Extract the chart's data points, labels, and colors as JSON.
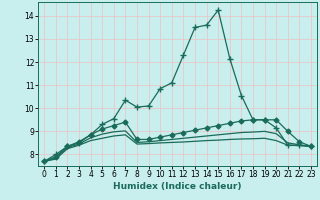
{
  "title": "",
  "xlabel": "Humidex (Indice chaleur)",
  "ylabel": "",
  "background_color": "#c8eeee",
  "grid_color": "#e8c8c8",
  "line_color": "#1a6b5a",
  "xlim": [
    -0.5,
    23.5
  ],
  "ylim": [
    7.5,
    14.6
  ],
  "xticks": [
    0,
    1,
    2,
    3,
    4,
    5,
    6,
    7,
    8,
    9,
    10,
    11,
    12,
    13,
    14,
    15,
    16,
    17,
    18,
    19,
    20,
    21,
    22,
    23
  ],
  "yticks": [
    8,
    9,
    10,
    11,
    12,
    13,
    14
  ],
  "series": [
    {
      "x": [
        0,
        1,
        2,
        3,
        4,
        5,
        6,
        7,
        8,
        9,
        10,
        11,
        12,
        13,
        14,
        15,
        16,
        17,
        18,
        19,
        20,
        21,
        22,
        23
      ],
      "y": [
        7.7,
        8.0,
        8.35,
        8.5,
        8.85,
        9.3,
        9.55,
        10.35,
        10.05,
        10.1,
        10.85,
        11.1,
        12.3,
        13.5,
        13.6,
        14.25,
        12.15,
        10.55,
        9.5,
        9.5,
        9.15,
        8.4,
        8.4,
        8.35
      ],
      "marker": "+",
      "linewidth": 0.9,
      "markersize": 4
    },
    {
      "x": [
        0,
        1,
        2,
        3,
        4,
        5,
        6,
        7,
        8,
        9,
        10,
        11,
        12,
        13,
        14,
        15,
        16,
        17,
        18,
        19,
        20,
        21,
        22,
        23
      ],
      "y": [
        7.7,
        7.9,
        8.35,
        8.55,
        8.85,
        9.1,
        9.25,
        9.4,
        8.65,
        8.65,
        8.75,
        8.85,
        8.95,
        9.05,
        9.15,
        9.25,
        9.35,
        9.45,
        9.5,
        9.5,
        9.5,
        9.0,
        8.55,
        8.35
      ],
      "marker": "D",
      "linewidth": 0.9,
      "markersize": 2.5
    },
    {
      "x": [
        0,
        1,
        2,
        3,
        4,
        5,
        6,
        7,
        8,
        9,
        10,
        11,
        12,
        13,
        14,
        15,
        16,
        17,
        18,
        19,
        20,
        21,
        22,
        23
      ],
      "y": [
        7.7,
        7.85,
        8.3,
        8.45,
        8.72,
        8.88,
        8.98,
        9.02,
        8.52,
        8.55,
        8.6,
        8.65,
        8.7,
        8.75,
        8.8,
        8.85,
        8.9,
        8.95,
        8.97,
        9.0,
        8.9,
        8.5,
        8.42,
        8.35
      ],
      "marker": null,
      "linewidth": 0.9,
      "markersize": 0
    },
    {
      "x": [
        0,
        1,
        2,
        3,
        4,
        5,
        6,
        7,
        8,
        9,
        10,
        11,
        12,
        13,
        14,
        15,
        16,
        17,
        18,
        19,
        20,
        21,
        22,
        23
      ],
      "y": [
        7.7,
        7.8,
        8.25,
        8.4,
        8.6,
        8.7,
        8.8,
        8.85,
        8.45,
        8.47,
        8.5,
        8.52,
        8.54,
        8.57,
        8.6,
        8.62,
        8.65,
        8.67,
        8.68,
        8.7,
        8.6,
        8.4,
        8.38,
        8.35
      ],
      "marker": null,
      "linewidth": 0.9,
      "markersize": 0
    }
  ]
}
